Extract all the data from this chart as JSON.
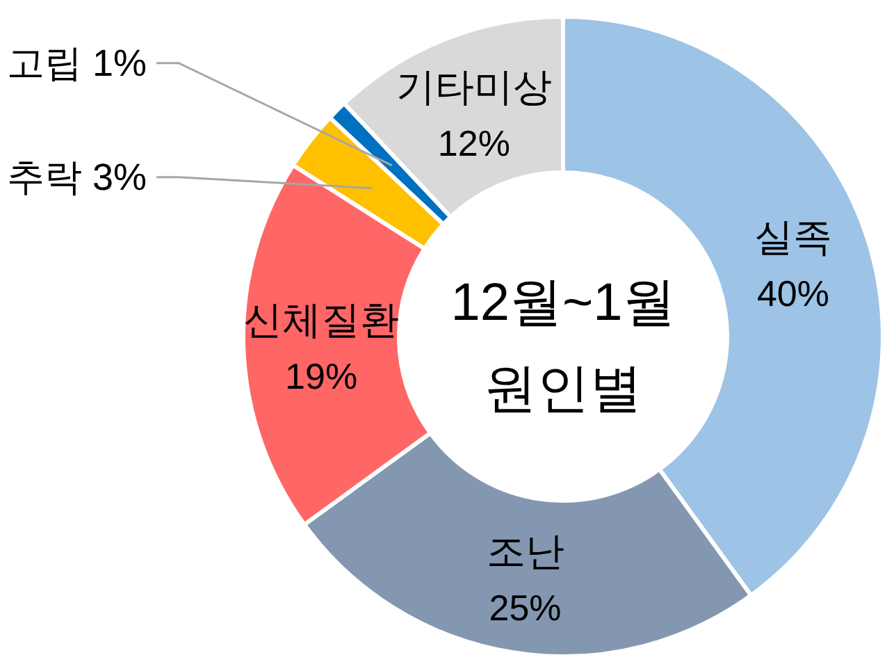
{
  "chart_data": {
    "type": "donut",
    "title": "12월~1월",
    "subtitle": "원인별",
    "categories": [
      "실족",
      "조난",
      "신체질환",
      "추락",
      "고립",
      "기타미상"
    ],
    "values": [
      40,
      25,
      19,
      3,
      1,
      12
    ],
    "value_labels": [
      "40%",
      "25%",
      "19%",
      "3%",
      "1%",
      "12%"
    ],
    "colors": [
      "#9dc3e6",
      "#8497b0",
      "#ff6666",
      "#ffc000",
      "#0070c0",
      "#d9d9d9"
    ]
  }
}
